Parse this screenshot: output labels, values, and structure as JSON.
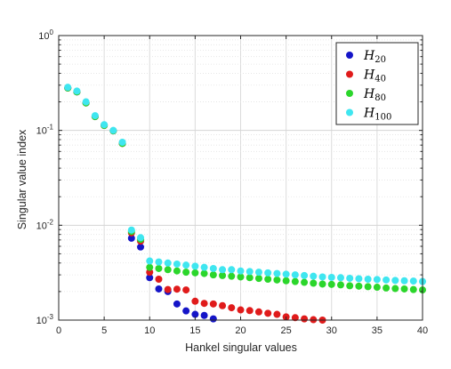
{
  "chart_data": {
    "type": "scatter",
    "title": "",
    "xlabel": "Hankel singular values",
    "ylabel": "Singular value index",
    "xlim": [
      0,
      40
    ],
    "ylim": [
      0.001,
      1
    ],
    "yscale": "log",
    "grid": true,
    "legend_position": "top-right",
    "x_ticks": [
      "0",
      "5",
      "10",
      "15",
      "20",
      "25",
      "30",
      "35",
      "40"
    ],
    "y_ticks": [
      {
        "base": "10",
        "exp": "0",
        "value": 1
      },
      {
        "base": "10",
        "exp": "-1",
        "value": 0.1
      },
      {
        "base": "10",
        "exp": "-2",
        "value": 0.01
      },
      {
        "base": "10",
        "exp": "-3",
        "value": 0.001
      }
    ],
    "series": [
      {
        "name_main": "H",
        "name_sub": "20",
        "color": "#1515c8",
        "x": [
          1,
          2,
          3,
          4,
          5,
          6,
          7,
          8,
          9,
          10,
          11,
          12,
          13,
          14,
          15,
          16,
          17
        ],
        "y": [
          0.28,
          0.255,
          0.195,
          0.14,
          0.113,
          0.099,
          0.073,
          0.0073,
          0.0059,
          0.0028,
          0.00213,
          0.002,
          0.00148,
          0.00125,
          0.00115,
          0.00112,
          0.00103
        ]
      },
      {
        "name_main": "H",
        "name_sub": "40",
        "color": "#e01b1b",
        "x": [
          1,
          2,
          3,
          4,
          5,
          6,
          7,
          8,
          9,
          10,
          11,
          12,
          13,
          14,
          15,
          16,
          17,
          18,
          19,
          20,
          21,
          22,
          23,
          24,
          25,
          26,
          27,
          28,
          29
        ],
        "y": [
          0.28,
          0.255,
          0.195,
          0.14,
          0.113,
          0.099,
          0.073,
          0.0083,
          0.0068,
          0.0032,
          0.0027,
          0.0021,
          0.00212,
          0.00208,
          0.00158,
          0.0015,
          0.00148,
          0.00142,
          0.00135,
          0.00128,
          0.00126,
          0.00122,
          0.00118,
          0.00115,
          0.00108,
          0.00106,
          0.00103,
          0.00101,
          0.001
        ]
      },
      {
        "name_main": "H",
        "name_sub": "80",
        "color": "#2bd62b",
        "x": [
          1,
          2,
          3,
          4,
          5,
          6,
          7,
          8,
          9,
          10,
          11,
          12,
          13,
          14,
          15,
          16,
          17,
          18,
          19,
          20,
          21,
          22,
          23,
          24,
          25,
          26,
          27,
          28,
          29,
          30,
          31,
          32,
          33,
          34,
          35,
          36,
          37,
          38,
          39,
          40
        ],
        "y": [
          0.28,
          0.255,
          0.195,
          0.14,
          0.113,
          0.099,
          0.073,
          0.0086,
          0.0071,
          0.0036,
          0.0035,
          0.0034,
          0.0033,
          0.0032,
          0.00315,
          0.0031,
          0.003,
          0.00295,
          0.0029,
          0.00285,
          0.0028,
          0.00275,
          0.0027,
          0.00265,
          0.0026,
          0.00255,
          0.0025,
          0.00245,
          0.0024,
          0.00238,
          0.00235,
          0.0023,
          0.00228,
          0.00225,
          0.00222,
          0.00218,
          0.00215,
          0.00213,
          0.0021,
          0.00208
        ]
      },
      {
        "name_main": "H",
        "name_sub": "100",
        "color": "#3fe6f0",
        "x": [
          1,
          2,
          3,
          4,
          5,
          6,
          7,
          8,
          9,
          10,
          11,
          12,
          13,
          14,
          15,
          16,
          17,
          18,
          19,
          20,
          21,
          22,
          23,
          24,
          25,
          26,
          27,
          28,
          29,
          30,
          31,
          32,
          33,
          34,
          35,
          36,
          37,
          38,
          39,
          40
        ],
        "y": [
          0.285,
          0.26,
          0.2,
          0.143,
          0.115,
          0.1,
          0.075,
          0.0089,
          0.0074,
          0.0042,
          0.0041,
          0.004,
          0.0039,
          0.0038,
          0.0037,
          0.0036,
          0.0035,
          0.0034,
          0.0034,
          0.0033,
          0.00325,
          0.0032,
          0.00315,
          0.0031,
          0.00305,
          0.003,
          0.00295,
          0.0029,
          0.00285,
          0.00282,
          0.0028,
          0.00276,
          0.00273,
          0.0027,
          0.00268,
          0.00265,
          0.00262,
          0.0026,
          0.00258,
          0.00255
        ]
      }
    ]
  }
}
